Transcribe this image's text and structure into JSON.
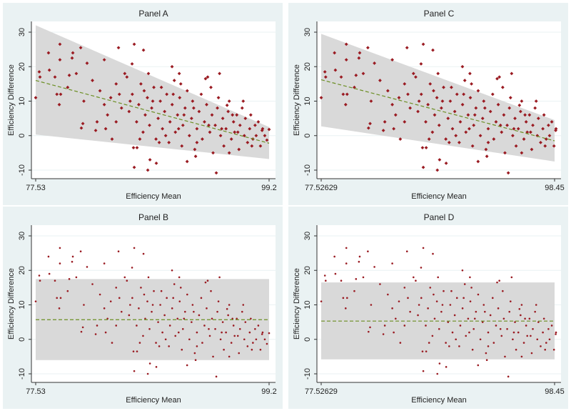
{
  "chart_data": [
    {
      "id": "A",
      "type": "scatter",
      "title": "Panel A",
      "xlabel": "Efficiency Mean",
      "ylabel": "Efficiency Difference",
      "xlim": [
        77.53,
        99.2
      ],
      "ylim": [
        -10,
        30
      ],
      "xticks": [
        "77.53",
        "99.2"
      ],
      "yticks": [
        -10,
        0,
        10,
        20,
        30
      ],
      "marker": "diamond",
      "points_ref": "set1",
      "band": {
        "upper": [
          32,
          2.5
        ],
        "lower": [
          0.3,
          -6.8
        ]
      },
      "mean_line": [
        16,
        -2.2
      ]
    },
    {
      "id": "C",
      "type": "scatter",
      "title": "Panel C",
      "xlabel": "Efficiency Mean",
      "ylabel": "Efficiency Difference",
      "xlim": [
        77.52629,
        98.45
      ],
      "ylim": [
        -10,
        30
      ],
      "xticks": [
        "77.52629",
        "98.45"
      ],
      "yticks": [
        -10,
        0,
        10,
        20,
        30
      ],
      "marker": "diamond",
      "points_ref": "set1",
      "band": {
        "upper": [
          29.5,
          4.5
        ],
        "lower": [
          2.7,
          -7.5
        ]
      },
      "mean_line": [
        16.2,
        -1.5
      ]
    },
    {
      "id": "B",
      "type": "scatter",
      "title": "Panel B",
      "xlabel": "Efficiency Mean",
      "ylabel": "Efficiency Difference",
      "xlim": [
        77.53,
        99.2
      ],
      "ylim": [
        -10,
        30
      ],
      "xticks": [
        "77.53",
        "99.2"
      ],
      "yticks": [
        -10,
        0,
        10,
        20,
        30
      ],
      "marker": "dot",
      "points_ref": "set1",
      "band": {
        "upper": [
          17.5,
          17.5
        ],
        "lower": [
          -6,
          -6
        ]
      },
      "mean_line": [
        5.7,
        5.7
      ]
    },
    {
      "id": "D",
      "type": "scatter",
      "title": "Panel D",
      "xlabel": "Efficiency Mean",
      "ylabel": "Efficiency Difference",
      "xlim": [
        77.52629,
        98.45
      ],
      "ylim": [
        -10,
        30
      ],
      "xticks": [
        "77.52629",
        "98.45"
      ],
      "yticks": [
        -10,
        0,
        10,
        20,
        30
      ],
      "marker": "dot",
      "points_ref": "set1",
      "band": {
        "upper": [
          16.5,
          16.5
        ],
        "lower": [
          -5.8,
          -5.8
        ]
      },
      "mean_line": [
        5.3,
        5.3
      ]
    }
  ],
  "points": {
    "set1": [
      [
        77.93,
        17
      ],
      [
        77.53,
        11
      ],
      [
        77.86,
        18.5
      ],
      [
        78.72,
        24
      ],
      [
        79.32,
        17
      ],
      [
        79.78,
        26.5
      ],
      [
        79.78,
        22
      ],
      [
        79.72,
        9
      ],
      [
        79.85,
        12
      ],
      [
        80.65,
        17.5
      ],
      [
        80.91,
        22.5
      ],
      [
        80.98,
        24
      ],
      [
        81.71,
        25.5
      ],
      [
        81.77,
        2.2
      ],
      [
        81.91,
        3.5
      ],
      [
        82.3,
        21
      ],
      [
        83.1,
        1.5
      ],
      [
        83.23,
        4
      ],
      [
        83.9,
        22
      ],
      [
        84.03,
        2
      ],
      [
        84.62,
        -1
      ],
      [
        85.22,
        25.5
      ],
      [
        86.48,
        20.8
      ],
      [
        86.61,
        -3.5
      ],
      [
        86.68,
        26.5
      ],
      [
        86.68,
        -9.2
      ],
      [
        86.94,
        -3.5
      ],
      [
        87.54,
        24.8
      ],
      [
        87.94,
        -10
      ],
      [
        88.14,
        -7
      ],
      [
        88.73,
        -8
      ],
      [
        90.19,
        20
      ],
      [
        90.86,
        18
      ],
      [
        91.59,
        -7.5
      ],
      [
        92.38,
        -6
      ],
      [
        94.3,
        -10.8
      ],
      [
        95.3,
        8.8
      ],
      [
        99.2,
        1.8
      ],
      [
        99.0,
        -1.3
      ],
      [
        98.55,
        1.5
      ],
      [
        86.2,
        7
      ],
      [
        86.5,
        12
      ],
      [
        86.9,
        4
      ],
      [
        87.1,
        9
      ],
      [
        87.3,
        15
      ],
      [
        87.5,
        1
      ],
      [
        87.7,
        6
      ],
      [
        87.9,
        11
      ],
      [
        88.1,
        3
      ],
      [
        88.3,
        8
      ],
      [
        88.5,
        14
      ],
      [
        88.7,
        -1
      ],
      [
        88.9,
        5
      ],
      [
        89.1,
        10
      ],
      [
        89.3,
        2
      ],
      [
        89.5,
        7
      ],
      [
        89.7,
        12
      ],
      [
        89.9,
        -2
      ],
      [
        90.0,
        4
      ],
      [
        90.2,
        9
      ],
      [
        90.4,
        16
      ],
      [
        90.5,
        1
      ],
      [
        90.7,
        6
      ],
      [
        90.9,
        11
      ],
      [
        91.1,
        -3
      ],
      [
        91.2,
        3
      ],
      [
        91.4,
        8
      ],
      [
        91.6,
        13
      ],
      [
        91.8,
        0
      ],
      [
        92.0,
        5
      ],
      [
        92.1,
        10
      ],
      [
        92.3,
        -4
      ],
      [
        92.5,
        2
      ],
      [
        92.7,
        7
      ],
      [
        92.9,
        12
      ],
      [
        93.0,
        -1
      ],
      [
        93.2,
        4
      ],
      [
        93.4,
        9
      ],
      [
        93.5,
        17
      ],
      [
        93.7,
        1
      ],
      [
        93.9,
        6
      ],
      [
        94.0,
        -5
      ],
      [
        94.2,
        3
      ],
      [
        94.4,
        8
      ],
      [
        94.5,
        11
      ],
      [
        94.7,
        0
      ],
      [
        94.9,
        5
      ],
      [
        95.0,
        -3
      ],
      [
        95.2,
        2
      ],
      [
        95.4,
        7
      ],
      [
        95.5,
        10
      ],
      [
        95.7,
        -1
      ],
      [
        95.9,
        4
      ],
      [
        96.0,
        1
      ],
      [
        96.2,
        6
      ],
      [
        96.4,
        -4
      ],
      [
        96.5,
        3
      ],
      [
        96.7,
        8
      ],
      [
        96.9,
        0
      ],
      [
        97.0,
        5
      ],
      [
        97.2,
        -2
      ],
      [
        97.4,
        2
      ],
      [
        97.5,
        6
      ],
      [
        97.7,
        -1
      ],
      [
        97.9,
        3
      ],
      [
        98.0,
        0
      ],
      [
        98.2,
        4
      ],
      [
        98.4,
        -3
      ],
      [
        98.6,
        2
      ],
      [
        98.8,
        0
      ],
      [
        84.5,
        11
      ],
      [
        85.0,
        15
      ],
      [
        85.5,
        8
      ],
      [
        85.8,
        18
      ],
      [
        84.2,
        6
      ],
      [
        83.5,
        13
      ],
      [
        82.8,
        16
      ],
      [
        82.0,
        10
      ],
      [
        81.3,
        18
      ],
      [
        80.5,
        14
      ],
      [
        79.5,
        12
      ],
      [
        78.8,
        19
      ],
      [
        86.0,
        17
      ],
      [
        88.0,
        18
      ],
      [
        89.0,
        -2
      ],
      [
        91.0,
        15
      ],
      [
        92.5,
        -2
      ],
      [
        93.8,
        14
      ],
      [
        95.5,
        -5
      ],
      [
        96.8,
        10
      ],
      [
        97.6,
        -3
      ],
      [
        94.6,
        18
      ],
      [
        93.3,
        16.5
      ],
      [
        90.8,
        2
      ],
      [
        89.6,
        0
      ],
      [
        87.2,
        -1
      ],
      [
        85.0,
        4
      ],
      [
        83.9,
        9
      ],
      [
        91.3,
        6
      ],
      [
        92.2,
        8
      ],
      [
        93.6,
        3
      ],
      [
        94.8,
        2
      ],
      [
        95.8,
        6
      ],
      [
        96.3,
        1
      ],
      [
        90.3,
        12
      ],
      [
        89.2,
        14
      ],
      [
        88.4,
        10
      ],
      [
        87.6,
        13
      ],
      [
        86.3,
        10
      ],
      [
        85.3,
        12
      ]
    ]
  },
  "colors": {
    "marker": "#9a1b22",
    "band": "#d9d9d9",
    "mean_line": "#6b8e23",
    "panel_bg": "#eaf2f3",
    "grid": "#eaf2f3"
  }
}
